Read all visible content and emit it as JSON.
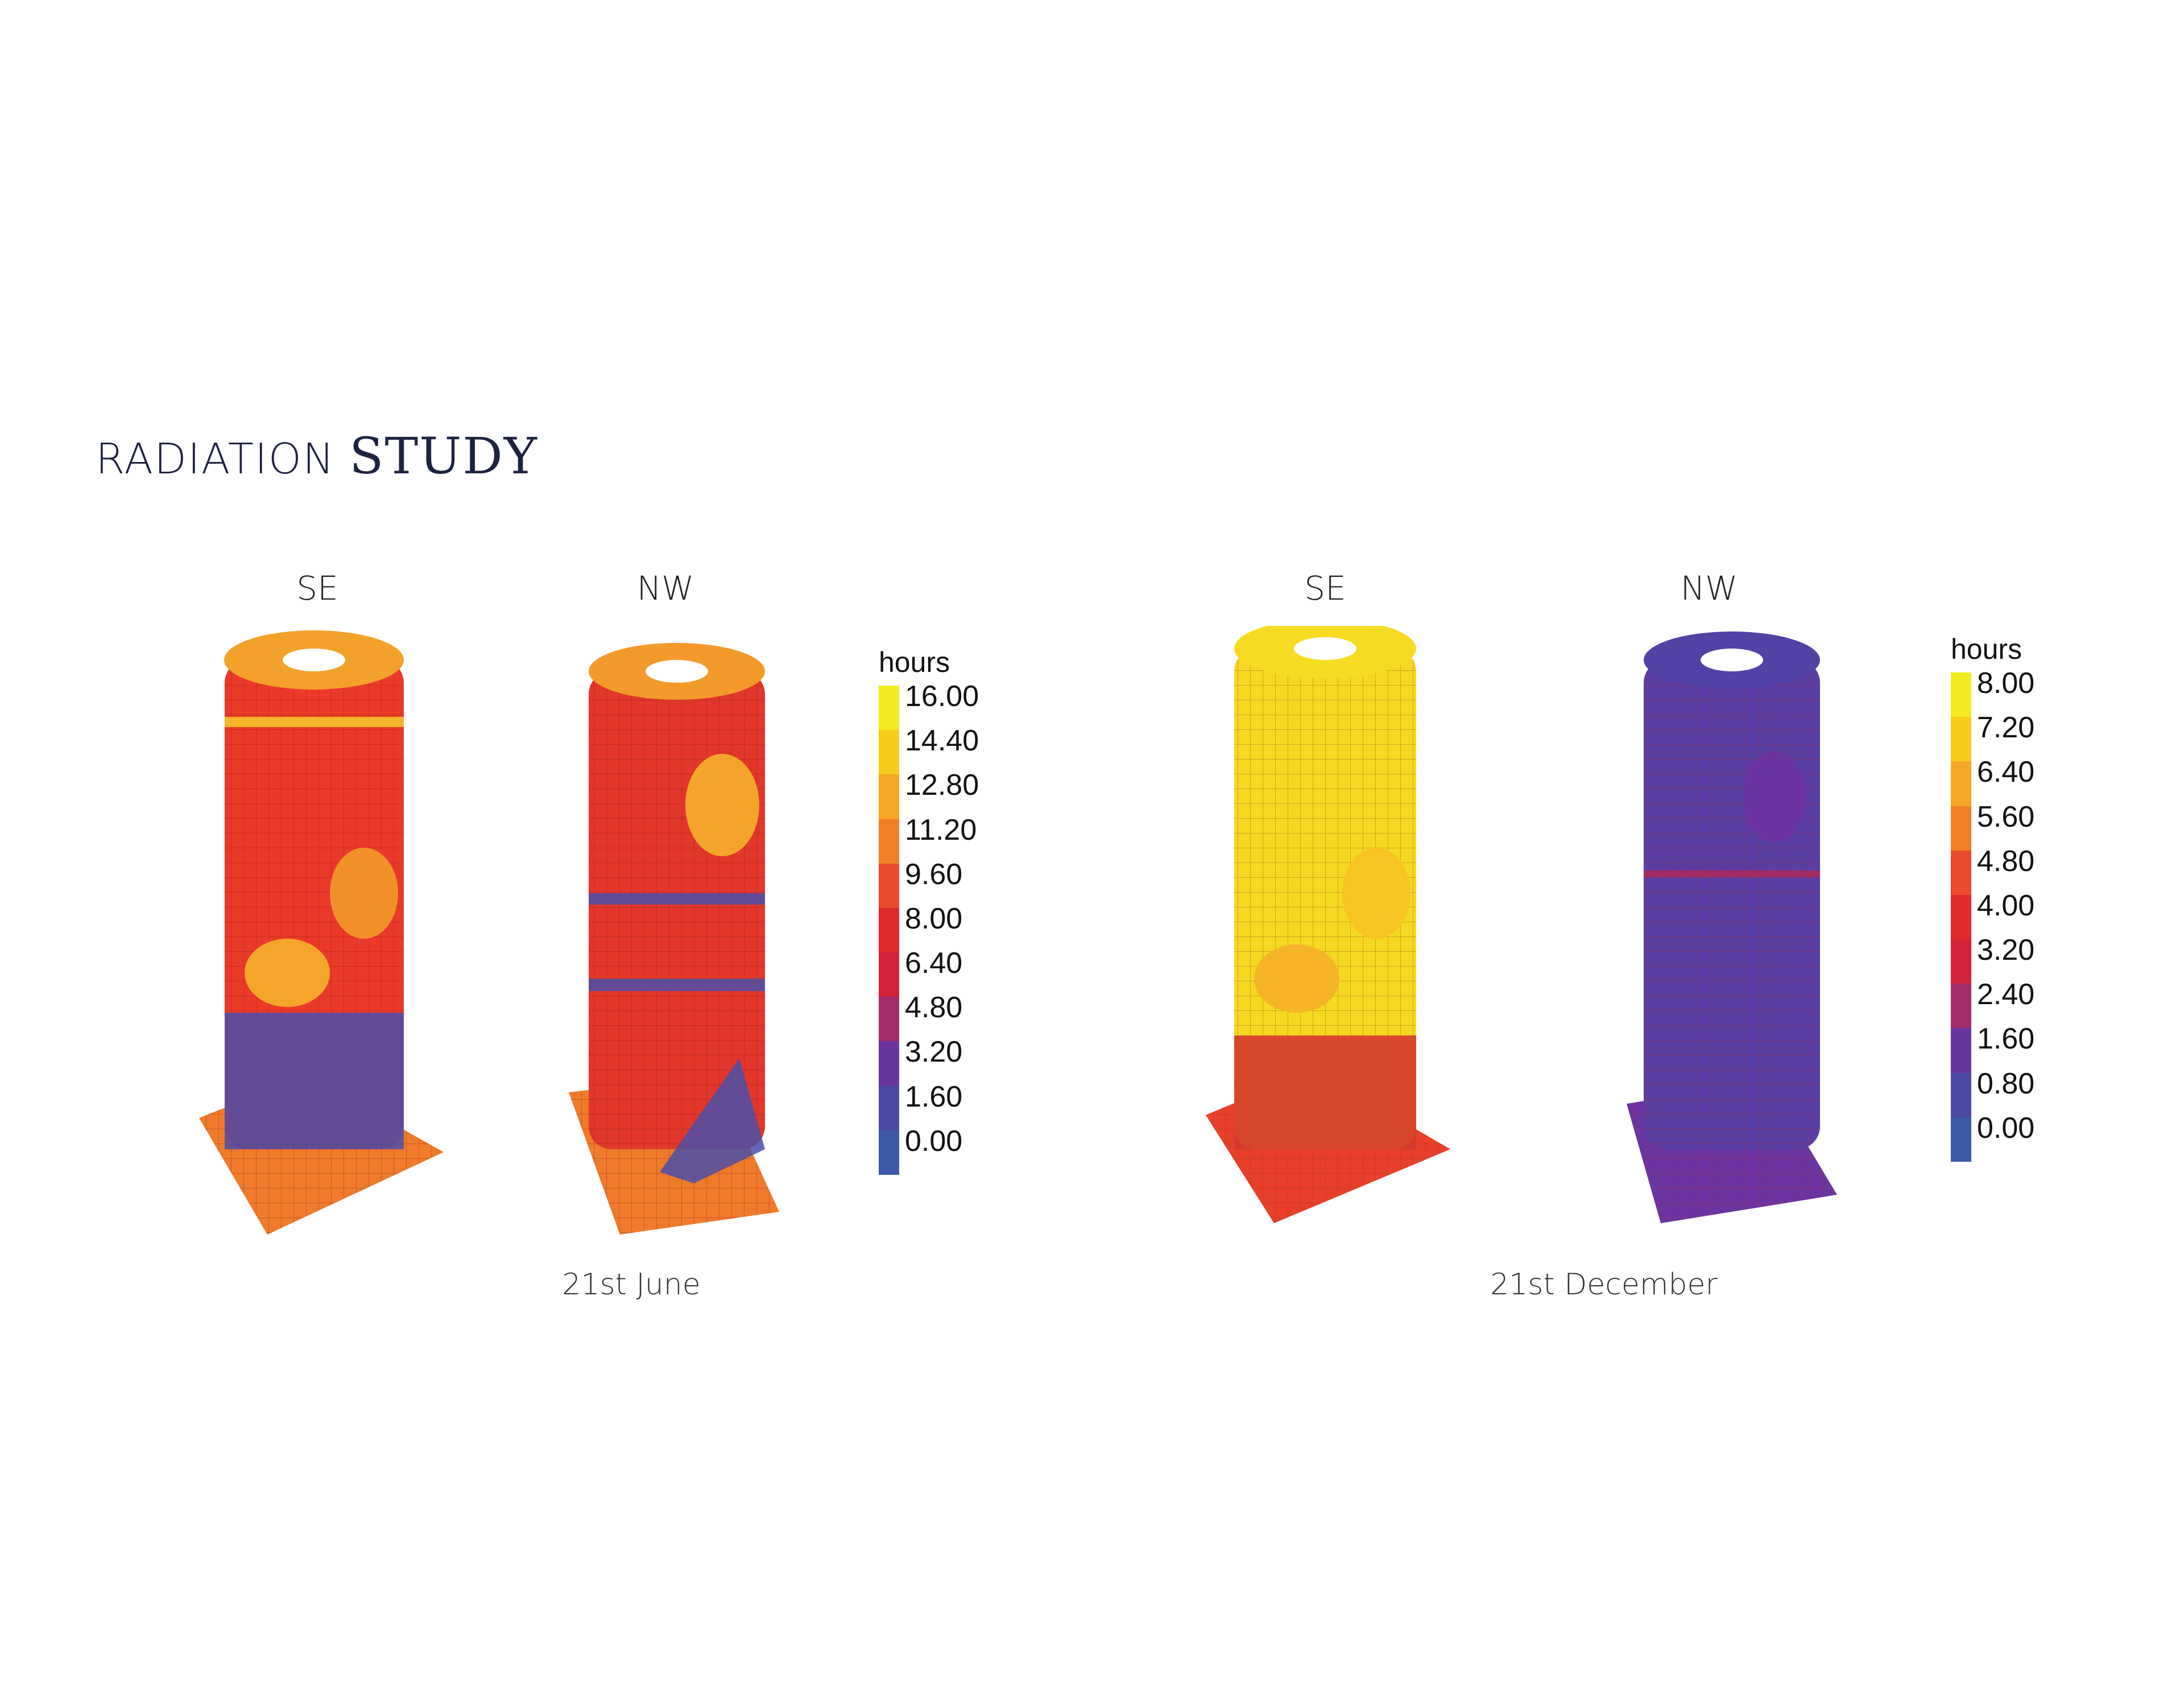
{
  "title": {
    "part1": "RADIATION",
    "part2": "STUDY"
  },
  "panels": [
    {
      "date": "21st June",
      "views": [
        "SE",
        "NW"
      ],
      "legend": {
        "unit": "hours",
        "ticks": [
          "16.00",
          "14.40",
          "12.80",
          "11.20",
          "9.60",
          "8.00",
          "6.40",
          "4.80",
          "3.20",
          "1.60",
          "0.00"
        ]
      }
    },
    {
      "date": "21st December",
      "views": [
        "SE",
        "NW"
      ],
      "legend": {
        "unit": "hours",
        "ticks": [
          "8.00",
          "7.20",
          "6.40",
          "5.60",
          "4.80",
          "4.00",
          "3.20",
          "2.40",
          "1.60",
          "0.80",
          "0.00"
        ]
      }
    }
  ],
  "colors": {
    "scale": [
      "#f3ea21",
      "#f7cc1c",
      "#f7a623",
      "#f07f27",
      "#ec4a2d",
      "#e02a2e",
      "#d42339",
      "#a32b6c",
      "#6a35a0",
      "#4a4aa6",
      "#3a5aa8"
    ],
    "dominant": {
      "june_se": "#ec3a2a",
      "june_nw": "#e2372a",
      "dec_se": "#f5d821",
      "dec_nw": "#5a3ea3"
    }
  }
}
